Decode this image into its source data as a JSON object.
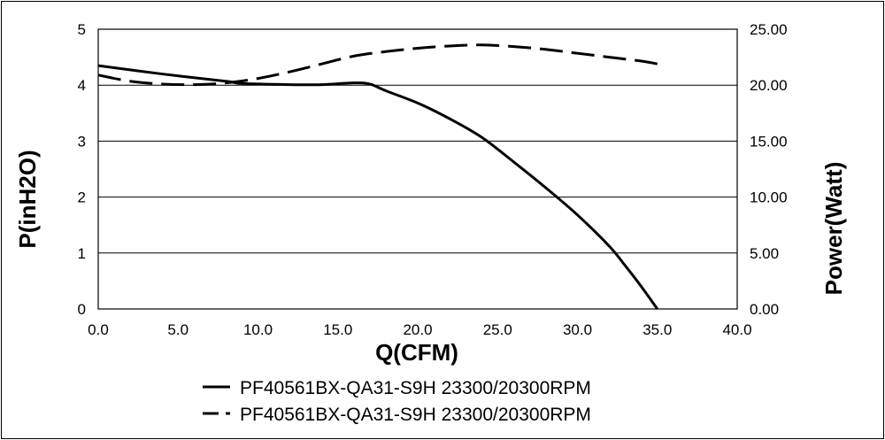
{
  "chart_data": {
    "type": "line",
    "xlabel": "Q(CFM)",
    "ylabel": "P(inH2O)",
    "y2label": "Power(Watt)",
    "xlim": [
      0,
      40
    ],
    "ylim": [
      0,
      5
    ],
    "y2lim": [
      0,
      25
    ],
    "x_ticks": [
      "0.0",
      "5.0",
      "10.0",
      "15.0",
      "20.0",
      "25.0",
      "30.0",
      "35.0",
      "40.0"
    ],
    "y_ticks": [
      "0",
      "1",
      "2",
      "3",
      "4",
      "5"
    ],
    "y2_ticks": [
      "0.00",
      "5.00",
      "10.00",
      "15.00",
      "20.00",
      "25.00"
    ],
    "grid": "horizontal",
    "legend_position": "bottom",
    "series": [
      {
        "name": "PF40561BX-QA31-S9H 23300/20300RPM",
        "axis": "left",
        "style": "solid",
        "color": "#000000",
        "x": [
          0,
          4,
          8,
          9,
          12,
          14,
          16,
          17,
          18,
          20,
          22,
          24,
          26,
          28,
          30,
          32,
          33,
          34,
          35
        ],
        "y": [
          4.35,
          4.2,
          4.07,
          4.03,
          4.01,
          4.01,
          4.04,
          4.02,
          3.9,
          3.68,
          3.4,
          3.07,
          2.63,
          2.17,
          1.68,
          1.12,
          0.77,
          0.4,
          0.0
        ]
      },
      {
        "name": "PF40561BX-QA31-S9H 23300/20300RPM",
        "axis": "right",
        "style": "dashed",
        "color": "#000000",
        "x": [
          0,
          2,
          4,
          6,
          8,
          10,
          12,
          14,
          16,
          18,
          20,
          22,
          24,
          26,
          28,
          30,
          32,
          34,
          35
        ],
        "y": [
          20.9,
          20.35,
          20.1,
          20.05,
          20.2,
          20.6,
          21.2,
          21.9,
          22.6,
          23.0,
          23.3,
          23.5,
          23.6,
          23.45,
          23.2,
          22.85,
          22.5,
          22.15,
          21.9
        ]
      }
    ]
  }
}
